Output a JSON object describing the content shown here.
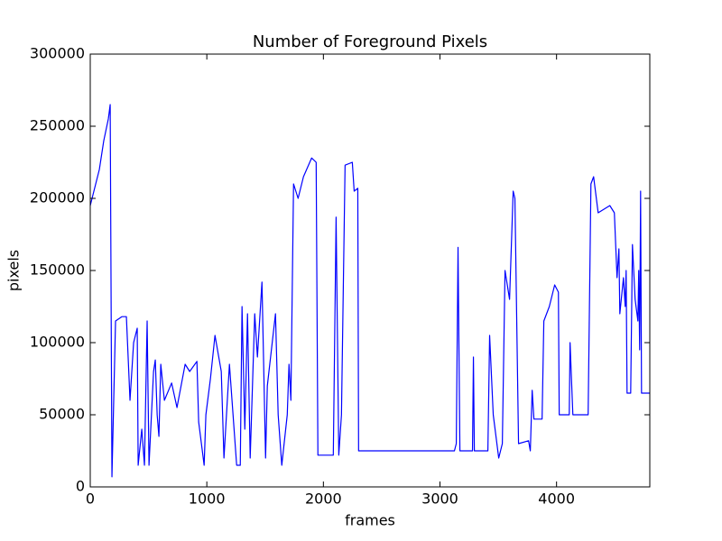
{
  "chart_data": {
    "type": "line",
    "title": "Number of Foreground Pixels",
    "xlabel": "frames",
    "ylabel": "pixels",
    "color": "#0000ff",
    "xlim": [
      0,
      4800
    ],
    "xticks": [
      0,
      1000,
      2000,
      3000,
      4000
    ],
    "ylim": [
      0,
      300000
    ],
    "yticks": [
      0,
      50000,
      100000,
      150000,
      200000,
      250000,
      300000
    ],
    "x": [
      0,
      78,
      116,
      155,
      171,
      186,
      217,
      271,
      310,
      341,
      372,
      403,
      411,
      442,
      465,
      488,
      504,
      543,
      558,
      574,
      589,
      605,
      636,
      698,
      744,
      814,
      853,
      915,
      930,
      977,
      992,
      1031,
      1070,
      1124,
      1147,
      1194,
      1256,
      1287,
      1302,
      1326,
      1349,
      1372,
      1411,
      1434,
      1473,
      1504,
      1519,
      1589,
      1612,
      1643,
      1690,
      1705,
      1721,
      1744,
      1783,
      1829,
      1899,
      1938,
      1953,
      2085,
      2109,
      2132,
      2155,
      2186,
      2248,
      2264,
      2295,
      2302,
      3124,
      3140,
      3155,
      3171,
      3279,
      3287,
      3295,
      3411,
      3426,
      3457,
      3504,
      3535,
      3558,
      3597,
      3628,
      3643,
      3674,
      3760,
      3775,
      3791,
      3806,
      3876,
      3891,
      3938,
      3984,
      4016,
      4023,
      4109,
      4116,
      4140,
      4271,
      4295,
      4318,
      4357,
      4457,
      4496,
      4519,
      4535,
      4543,
      4574,
      4589,
      4597,
      4605,
      4636,
      4651,
      4674,
      4698,
      4705,
      4713,
      4721,
      4729,
      4800
    ],
    "values": [
      195000,
      220000,
      240000,
      255000,
      265000,
      7000,
      115000,
      118000,
      118000,
      60000,
      100000,
      110000,
      15000,
      40000,
      15000,
      115000,
      15000,
      80000,
      88000,
      50000,
      35000,
      85000,
      60000,
      72000,
      55000,
      85000,
      80000,
      87000,
      45000,
      15000,
      50000,
      75000,
      105000,
      80000,
      20000,
      85000,
      15000,
      15000,
      125000,
      40000,
      120000,
      20000,
      120000,
      90000,
      142000,
      20000,
      70000,
      120000,
      50000,
      15000,
      50000,
      85000,
      60000,
      210000,
      200000,
      215000,
      228000,
      225000,
      22000,
      22000,
      187000,
      22000,
      50000,
      223000,
      225000,
      205000,
      207000,
      25000,
      25000,
      30000,
      166000,
      25000,
      25000,
      90000,
      25000,
      25000,
      105000,
      50000,
      20000,
      30000,
      150000,
      130000,
      205000,
      200000,
      30000,
      32000,
      25000,
      67000,
      47000,
      47000,
      115000,
      125000,
      140000,
      135000,
      50000,
      50000,
      100000,
      50000,
      50000,
      210000,
      215000,
      190000,
      195000,
      190000,
      145000,
      165000,
      120000,
      145000,
      125000,
      150000,
      65000,
      65000,
      168000,
      130000,
      115000,
      150000,
      95000,
      205000,
      65000,
      65000
    ]
  }
}
